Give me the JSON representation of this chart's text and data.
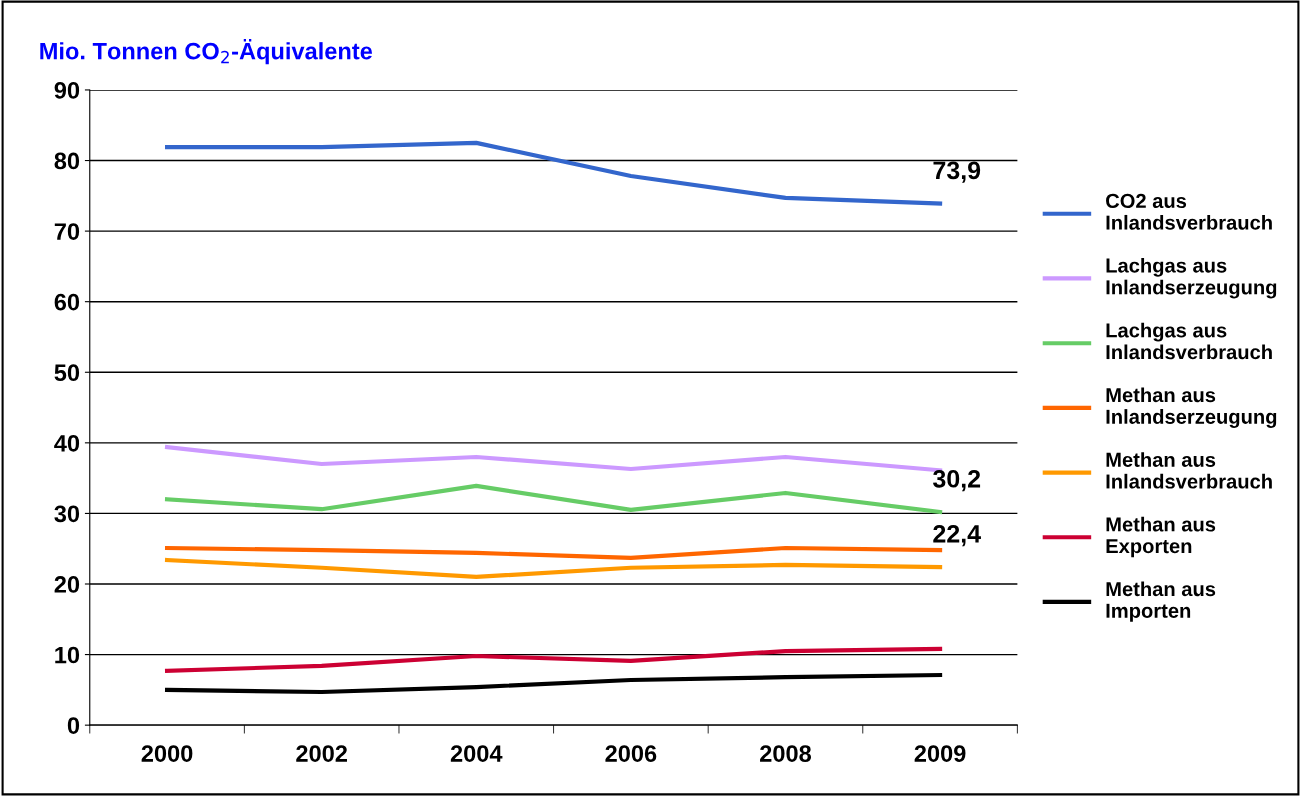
{
  "chart_data": {
    "type": "line",
    "title": "Mio. Tonnen CO$_{2}$-Äquivalente",
    "categories": [
      "2000",
      "2002",
      "2004",
      "2006",
      "2008",
      "2009"
    ],
    "series": [
      {
        "name": "CO2 aus Inlandsverbrauch",
        "color": "#3366cc",
        "values": [
          81.9,
          81.9,
          82.5,
          77.8,
          74.7,
          73.9
        ]
      },
      {
        "name": "Lachgas aus Inlandserzeugung",
        "color": "#cc99ff",
        "values": [
          39.4,
          37.0,
          38.0,
          36.3,
          38.0,
          36.1
        ]
      },
      {
        "name": "Lachgas aus Inlandsverbrauch",
        "color": "#66cc66",
        "values": [
          32.0,
          30.6,
          33.9,
          30.5,
          32.9,
          30.2
        ]
      },
      {
        "name": "Methan aus Inlandserzeugung",
        "color": "#ff6600",
        "values": [
          25.1,
          24.8,
          24.4,
          23.7,
          25.1,
          24.8
        ]
      },
      {
        "name": "Methan aus Inlandsverbrauch",
        "color": "#ff9900",
        "values": [
          23.4,
          22.3,
          21.0,
          22.3,
          22.7,
          22.4
        ]
      },
      {
        "name": "Methan aus Exporten",
        "color": "#cc0033",
        "values": [
          7.7,
          8.4,
          9.8,
          9.1,
          10.5,
          10.8
        ]
      },
      {
        "name": "Methan aus Importen",
        "color": "#000000",
        "values": [
          5.0,
          4.7,
          5.4,
          6.4,
          6.8,
          7.1
        ]
      }
    ],
    "annotations": [
      {
        "text": "73,9",
        "x": "2009",
        "y": 73.9
      },
      {
        "text": "30,2",
        "x": "2009",
        "y": 30.2
      },
      {
        "text": "22,4",
        "x": "2009",
        "y": 22.4
      }
    ],
    "ylim": [
      0,
      90
    ],
    "yticks": [
      0,
      10,
      20,
      30,
      40,
      50,
      60,
      70,
      80,
      90
    ],
    "grid": "y",
    "legend": "right",
    "marker": "none",
    "line_style": "solid"
  }
}
